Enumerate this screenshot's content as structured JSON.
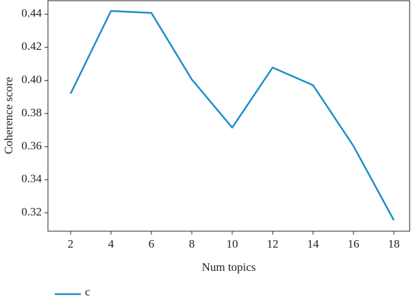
{
  "chart_data": {
    "type": "line",
    "x": [
      2,
      4,
      6,
      8,
      10,
      12,
      14,
      16,
      18
    ],
    "series": [
      {
        "name": "c",
        "color": "#1b8ec6",
        "values": [
          0.392,
          0.442,
          0.4408,
          0.4006,
          0.3715,
          0.4078,
          0.3971,
          0.3604,
          0.3155
        ]
      }
    ],
    "x_label": "Num topics",
    "y_label": "Coherence score",
    "xlim": [
      0.88,
      18.78
    ],
    "xticks": [
      2,
      4,
      6,
      8,
      10,
      12,
      14,
      16,
      18
    ],
    "ylim": [
      0.3089,
      0.4482
    ],
    "yticks": [
      0.32,
      0.34,
      0.36,
      0.38,
      {
        "value": 0.4,
        "label": "0.40"
      },
      0.42,
      0.44
    ],
    "grid": false,
    "legend": "bottom-left"
  }
}
